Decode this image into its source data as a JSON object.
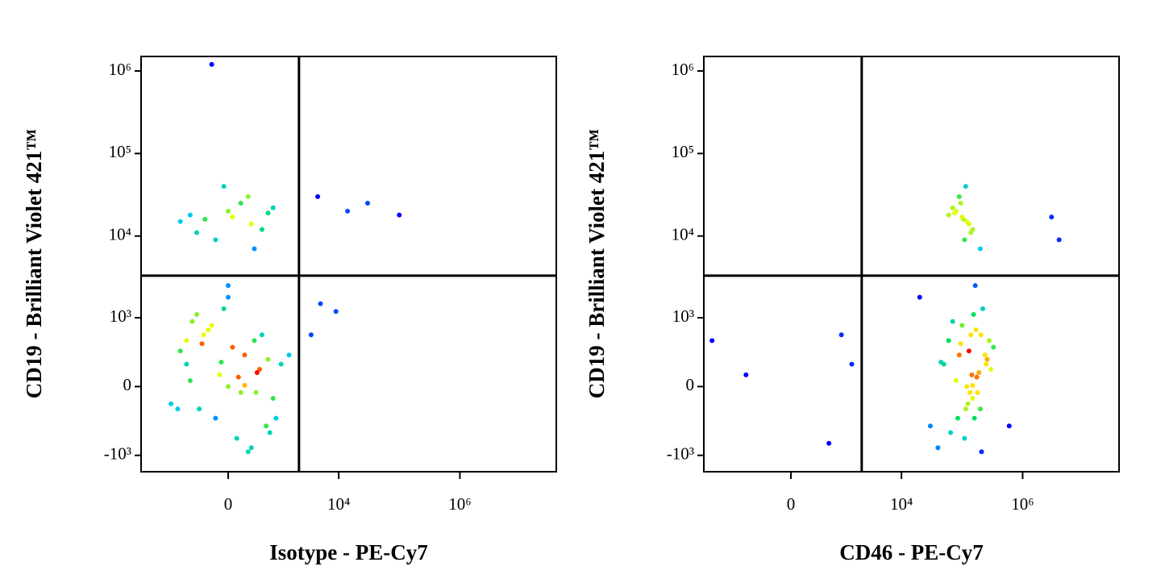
{
  "chart_data": [
    {
      "type": "scatter",
      "xlabel": "Isotype - PE-Cy7",
      "ylabel": "CD19 - Brilliant Violet 421™",
      "scale": "biexponential",
      "xlim": [
        -4100,
        39000000
      ],
      "ylim": [
        -1600,
        1500000
      ],
      "xticks": [
        0,
        {
          "value": 10000,
          "label": "10⁴"
        },
        {
          "value": 1000000,
          "label": "10⁶"
        }
      ],
      "yticks": [
        {
          "value": 1000000,
          "label": "10⁶"
        },
        {
          "value": 100000,
          "label": "10⁵"
        },
        {
          "value": 10000,
          "label": "10⁴"
        },
        {
          "value": 1000,
          "label": "10³"
        },
        0,
        {
          "value": -1000,
          "label": "-10³"
        }
      ],
      "gates": {
        "x": 2200,
        "y": 3300
      },
      "colormap": [
        "#0000ff",
        "#00c8ff",
        "#00e060",
        "#ffff00",
        "#ff0000"
      ],
      "x": [
        -100,
        200,
        -400,
        350,
        0,
        -700,
        600,
        -250,
        100,
        450,
        -550,
        800,
        -50,
        300,
        -900,
        150,
        -350,
        650,
        0,
        -150,
        500,
        -600,
        250,
        1100,
        -1300,
        50,
        -200,
        400,
        700,
        -450,
        1500,
        -1000,
        120,
        -80,
        380,
        -320,
        900,
        0,
        -700,
        200,
        -300,
        0,
        300,
        -600,
        150,
        500,
        -150,
        800,
        -900,
        250,
        -450,
        50,
        650,
        -50,
        350,
        4500,
        14000,
        30000,
        100000,
        5000,
        9000,
        3500,
        -200
      ],
      "y": [
        100,
        300,
        -200,
        500,
        0,
        200,
        -400,
        700,
        -600,
        150,
        900,
        -100,
        1300,
        -800,
        350,
        -50,
        450,
        250,
        1800,
        -300,
        600,
        50,
        -900,
        200,
        -150,
        400,
        800,
        120,
        -500,
        1100,
        300,
        -200,
        80,
        220,
        -50,
        600,
        -300,
        2500,
        500,
        10,
        16000,
        20000,
        14000,
        18000,
        25000,
        12000,
        9000,
        22000,
        15000,
        30000,
        11000,
        17000,
        19000,
        40000,
        7000,
        30000,
        20000,
        25000,
        18000,
        1500,
        1200,
        600,
        1200000
      ]
    },
    {
      "type": "scatter",
      "xlabel": "CD46 - PE-Cy7",
      "ylabel": "CD19 - Brilliant Violet 421™",
      "scale": "biexponential",
      "xlim": [
        -4100,
        39000000
      ],
      "ylim": [
        -1600,
        1500000
      ],
      "xticks": [
        0,
        {
          "value": 10000,
          "label": "10⁴"
        },
        {
          "value": 1000000,
          "label": "10⁶"
        }
      ],
      "yticks": [
        {
          "value": 1000000,
          "label": "10⁶"
        },
        {
          "value": 100000,
          "label": "10⁵"
        },
        {
          "value": 10000,
          "label": "10⁴"
        },
        {
          "value": 1000,
          "label": "10³"
        },
        0,
        {
          "value": -1000,
          "label": "-10³"
        }
      ],
      "gates": {
        "x": 2200,
        "y": 3300
      },
      "colormap": [
        "#0000ff",
        "#00c8ff",
        "#00e060",
        "#ffff00",
        "#ff0000"
      ],
      "x": [
        145000,
        90000,
        200000,
        60000,
        120000,
        250000,
        30000,
        170000,
        110000,
        300000,
        70000,
        150000,
        220000,
        40000,
        130000,
        180000,
        95000,
        260000,
        20000,
        160000,
        140000,
        80000,
        210000,
        50000,
        125000,
        330000,
        100000,
        190000,
        65000,
        155000,
        240000,
        115000,
        175000,
        45000,
        135000,
        205000,
        85000,
        165000,
        280000,
        150000,
        105000,
        80000,
        130000,
        60000,
        95000,
        150000,
        110000,
        70000,
        120000,
        90000,
        140000,
        100000,
        75000,
        115000,
        200000,
        -3000,
        -800,
        600,
        1500,
        1000,
        600000,
        3000000,
        4000000
      ],
      "y": [
        100,
        300,
        -200,
        500,
        0,
        200,
        -400,
        700,
        -600,
        150,
        900,
        -100,
        1300,
        -800,
        350,
        -50,
        450,
        250,
        1800,
        -300,
        600,
        50,
        -900,
        200,
        -150,
        400,
        800,
        120,
        -500,
        1100,
        300,
        -200,
        80,
        220,
        -50,
        600,
        -300,
        2500,
        500,
        10,
        16000,
        20000,
        14000,
        18000,
        25000,
        12000,
        9000,
        22000,
        15000,
        30000,
        11000,
        17000,
        19000,
        40000,
        7000,
        500,
        100,
        -700,
        200,
        600,
        -400,
        17000,
        9000
      ]
    }
  ]
}
